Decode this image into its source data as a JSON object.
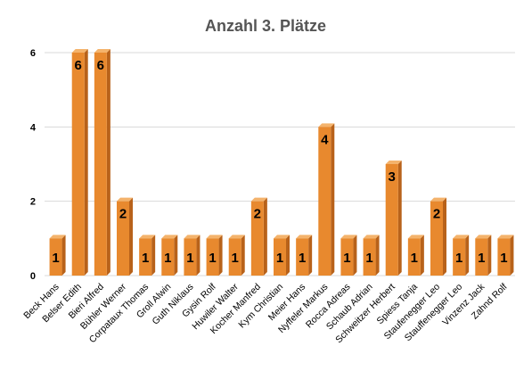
{
  "chart_data": {
    "type": "bar",
    "title": "Anzahl 3. Plätze",
    "xlabel": "",
    "ylabel": "",
    "ylim": [
      0,
      6
    ],
    "yticks": [
      0,
      2,
      4,
      6
    ],
    "grid": true,
    "legend": "none",
    "categories": [
      "Beck Hans",
      "Belser Edith",
      "Bieri Alfred",
      "Bühler Werner",
      "Corpataux Thomas",
      "Groll Alwin",
      "Guth Niklaus",
      "Gysin Rolf",
      "Huwiler Walter",
      "Kocher Manfred",
      "Kym Christian",
      "Meier Hans",
      "Nyffeler Markus",
      "Rocca Adreas",
      "Schaub Adrian",
      "Schweitzer Herbert",
      "Spiess Tanja",
      "Staufenegger Leo",
      "Stauffenegger Leo",
      "Vinzenz Jack",
      "Zahnd Rolf"
    ],
    "values": [
      1,
      6,
      6,
      2,
      1,
      1,
      1,
      1,
      1,
      2,
      1,
      1,
      4,
      1,
      1,
      3,
      1,
      2,
      1,
      1,
      1
    ],
    "colors": {
      "bar_front": "#e8892e",
      "bar_side": "#b8621a",
      "bar_top": "#f4b36c"
    }
  }
}
